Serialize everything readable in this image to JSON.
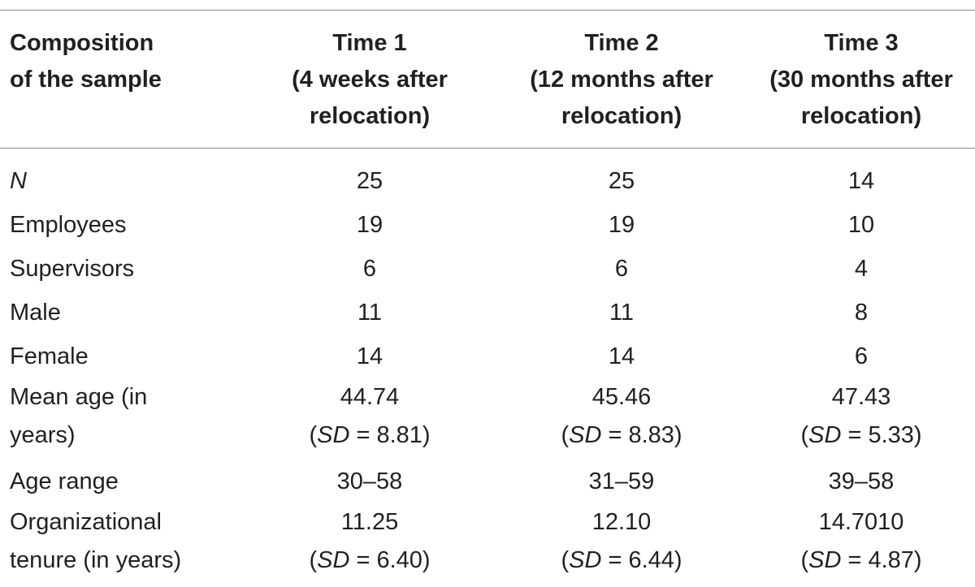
{
  "header": {
    "col0": [
      "Composition",
      "of the sample"
    ],
    "col1": [
      "Time 1",
      "(4 weeks after",
      "relocation)"
    ],
    "col2": [
      "Time 2",
      "(12 months after",
      "relocation)"
    ],
    "col3": [
      "Time 3",
      "(30 months after",
      "relocation)"
    ]
  },
  "rows": [
    {
      "label": "N",
      "t1": "25",
      "t2": "25",
      "t3": "14"
    },
    {
      "label": "Employees",
      "t1": "19",
      "t2": "19",
      "t3": "10"
    },
    {
      "label": "Supervisors",
      "t1": "6",
      "t2": "6",
      "t3": "4"
    },
    {
      "label": "Male",
      "t1": "11",
      "t2": "11",
      "t3": "8"
    },
    {
      "label": "Female",
      "t1": "14",
      "t2": "14",
      "t3": "6"
    }
  ],
  "mean_age": {
    "label": [
      "Mean age (in",
      "years)"
    ],
    "t1": {
      "value": "44.74",
      "sd_prefix": "(",
      "sd_label": "SD",
      "sd_value": " = 8.81)"
    },
    "t2": {
      "value": "45.46",
      "sd_prefix": "(",
      "sd_label": "SD",
      "sd_value": " = 8.83)"
    },
    "t3": {
      "value": "47.43",
      "sd_prefix": "(",
      "sd_label": "SD",
      "sd_value": " = 5.33)"
    }
  },
  "age_range": {
    "label": "Age range",
    "t1": "30–58",
    "t2": "31–59",
    "t3": "39–58"
  },
  "tenure": {
    "label": [
      "Organizational",
      "tenure (in years)"
    ],
    "t1": {
      "value": "11.25",
      "sd_prefix": "(",
      "sd_label": "SD",
      "sd_value": " = 6.40)"
    },
    "t2": {
      "value": "12.10",
      "sd_prefix": "(",
      "sd_label": "SD",
      "sd_value": " = 6.44)"
    },
    "t3": {
      "value": "14.7010",
      "sd_prefix": "(",
      "sd_label": "SD",
      "sd_value": " = 4.87)"
    }
  }
}
